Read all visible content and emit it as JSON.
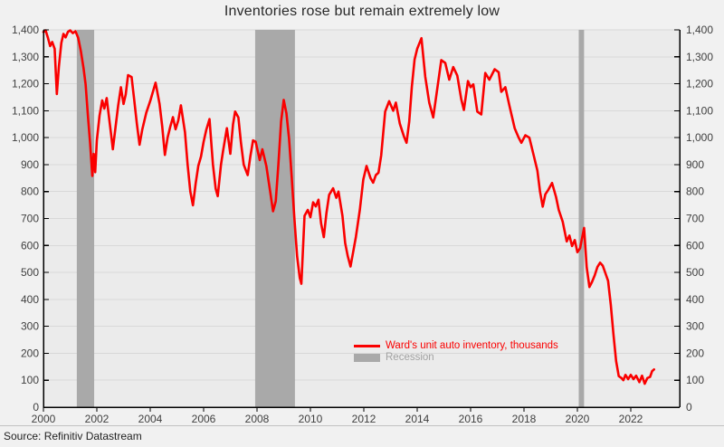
{
  "title": "Inventories rose but remain extremely low",
  "source": "Source: Refinitiv Datastream",
  "legend": {
    "series_label": "Ward's unit auto inventory, thousands",
    "recession_label": "Recession"
  },
  "colors": {
    "line": "#fa0000",
    "recession": "#a9a9a9",
    "plot_bg": "#ebebeb",
    "outer_bg": "#f1f1f1",
    "grid": "#d8d8d8",
    "axis": "#000000",
    "tick_label": "#3f3f3f",
    "title_text": "#282828",
    "legend_series_text": "#fa0000",
    "legend_recession_text": "#a2a2a2"
  },
  "chart_data": {
    "type": "line",
    "title": "Inventories rose but remain extremely low",
    "x_axis": {
      "range": [
        2000,
        2023.83
      ],
      "ticks": [
        2000,
        2002,
        2004,
        2006,
        2008,
        2010,
        2012,
        2014,
        2016,
        2018,
        2020,
        2022
      ]
    },
    "y_axis": {
      "range": [
        0,
        1400
      ],
      "tick_step": 100,
      "ticks": [
        0,
        100,
        200,
        300,
        400,
        500,
        600,
        700,
        800,
        900,
        1000,
        1100,
        1200,
        1300,
        1400
      ],
      "format": "comma",
      "labels_both_sides": true
    },
    "grid": "horizontal-only",
    "legend_position": "inside-bottom-center",
    "recessions": [
      [
        2001.25,
        2001.9
      ],
      [
        2007.93,
        2009.42
      ],
      [
        2020.05,
        2020.25
      ]
    ],
    "series": [
      {
        "name": "Ward's unit auto inventory, thousands",
        "color": "#fa0000",
        "points": [
          [
            2000.0,
            1392
          ],
          [
            2000.08,
            1398
          ],
          [
            2000.17,
            1370
          ],
          [
            2000.25,
            1340
          ],
          [
            2000.33,
            1355
          ],
          [
            2000.42,
            1330
          ],
          [
            2000.5,
            1162
          ],
          [
            2000.58,
            1265
          ],
          [
            2000.67,
            1352
          ],
          [
            2000.75,
            1385
          ],
          [
            2000.83,
            1372
          ],
          [
            2000.92,
            1393
          ],
          [
            2001.0,
            1398
          ],
          [
            2001.1,
            1388
          ],
          [
            2001.2,
            1395
          ],
          [
            2001.3,
            1370
          ],
          [
            2001.4,
            1322
          ],
          [
            2001.5,
            1258
          ],
          [
            2001.58,
            1198
          ],
          [
            2001.67,
            1075
          ],
          [
            2001.75,
            978
          ],
          [
            2001.83,
            858
          ],
          [
            2001.88,
            940
          ],
          [
            2001.94,
            872
          ],
          [
            2002.0,
            990
          ],
          [
            2002.1,
            1082
          ],
          [
            2002.2,
            1138
          ],
          [
            2002.28,
            1108
          ],
          [
            2002.37,
            1147
          ],
          [
            2002.45,
            1080
          ],
          [
            2002.55,
            1000
          ],
          [
            2002.6,
            957
          ],
          [
            2002.7,
            1040
          ],
          [
            2002.8,
            1120
          ],
          [
            2002.9,
            1187
          ],
          [
            2003.0,
            1125
          ],
          [
            2003.08,
            1160
          ],
          [
            2003.17,
            1232
          ],
          [
            2003.3,
            1225
          ],
          [
            2003.4,
            1140
          ],
          [
            2003.5,
            1050
          ],
          [
            2003.6,
            974
          ],
          [
            2003.7,
            1030
          ],
          [
            2003.85,
            1092
          ],
          [
            2004.0,
            1136
          ],
          [
            2004.2,
            1204
          ],
          [
            2004.35,
            1125
          ],
          [
            2004.45,
            1040
          ],
          [
            2004.55,
            936
          ],
          [
            2004.65,
            1000
          ],
          [
            2004.75,
            1040
          ],
          [
            2004.85,
            1076
          ],
          [
            2004.95,
            1031
          ],
          [
            2005.05,
            1064
          ],
          [
            2005.15,
            1120
          ],
          [
            2005.3,
            1020
          ],
          [
            2005.4,
            900
          ],
          [
            2005.5,
            800
          ],
          [
            2005.6,
            749
          ],
          [
            2005.7,
            830
          ],
          [
            2005.8,
            895
          ],
          [
            2005.9,
            930
          ],
          [
            2006.0,
            985
          ],
          [
            2006.1,
            1030
          ],
          [
            2006.22,
            1069
          ],
          [
            2006.35,
            900
          ],
          [
            2006.45,
            811
          ],
          [
            2006.53,
            783
          ],
          [
            2006.65,
            900
          ],
          [
            2006.73,
            951
          ],
          [
            2006.87,
            1035
          ],
          [
            2007.0,
            940
          ],
          [
            2007.1,
            1050
          ],
          [
            2007.18,
            1097
          ],
          [
            2007.3,
            1075
          ],
          [
            2007.4,
            980
          ],
          [
            2007.5,
            900
          ],
          [
            2007.65,
            861
          ],
          [
            2007.75,
            930
          ],
          [
            2007.85,
            990
          ],
          [
            2007.95,
            985
          ],
          [
            2008.1,
            917
          ],
          [
            2008.2,
            957
          ],
          [
            2008.35,
            895
          ],
          [
            2008.5,
            794
          ],
          [
            2008.6,
            727
          ],
          [
            2008.7,
            764
          ],
          [
            2008.8,
            900
          ],
          [
            2008.9,
            1060
          ],
          [
            2009.0,
            1140
          ],
          [
            2009.1,
            1090
          ],
          [
            2009.2,
            996
          ],
          [
            2009.3,
            850
          ],
          [
            2009.4,
            700
          ],
          [
            2009.5,
            560
          ],
          [
            2009.6,
            480
          ],
          [
            2009.66,
            458
          ],
          [
            2009.78,
            710
          ],
          [
            2009.9,
            732
          ],
          [
            2010.0,
            705
          ],
          [
            2010.1,
            760
          ],
          [
            2010.2,
            745
          ],
          [
            2010.3,
            770
          ],
          [
            2010.4,
            682
          ],
          [
            2010.5,
            631
          ],
          [
            2010.6,
            720
          ],
          [
            2010.7,
            788
          ],
          [
            2010.85,
            812
          ],
          [
            2010.97,
            777
          ],
          [
            2011.05,
            800
          ],
          [
            2011.2,
            710
          ],
          [
            2011.3,
            609
          ],
          [
            2011.4,
            560
          ],
          [
            2011.5,
            522
          ],
          [
            2011.6,
            575
          ],
          [
            2011.7,
            631
          ],
          [
            2011.85,
            732
          ],
          [
            2011.98,
            844
          ],
          [
            2012.1,
            895
          ],
          [
            2012.25,
            850
          ],
          [
            2012.35,
            833
          ],
          [
            2012.45,
            861
          ],
          [
            2012.55,
            870
          ],
          [
            2012.65,
            934
          ],
          [
            2012.8,
            1097
          ],
          [
            2012.95,
            1135
          ],
          [
            2013.1,
            1100
          ],
          [
            2013.2,
            1130
          ],
          [
            2013.35,
            1052
          ],
          [
            2013.5,
            1005
          ],
          [
            2013.6,
            981
          ],
          [
            2013.7,
            1060
          ],
          [
            2013.8,
            1190
          ],
          [
            2013.9,
            1290
          ],
          [
            2014.0,
            1330
          ],
          [
            2014.16,
            1369
          ],
          [
            2014.3,
            1226
          ],
          [
            2014.45,
            1130
          ],
          [
            2014.6,
            1075
          ],
          [
            2014.75,
            1180
          ],
          [
            2014.9,
            1288
          ],
          [
            2015.05,
            1277
          ],
          [
            2015.2,
            1215
          ],
          [
            2015.35,
            1262
          ],
          [
            2015.5,
            1230
          ],
          [
            2015.65,
            1142
          ],
          [
            2015.75,
            1103
          ],
          [
            2015.9,
            1210
          ],
          [
            2016.0,
            1187
          ],
          [
            2016.1,
            1198
          ],
          [
            2016.25,
            1097
          ],
          [
            2016.4,
            1086
          ],
          [
            2016.55,
            1240
          ],
          [
            2016.7,
            1215
          ],
          [
            2016.9,
            1254
          ],
          [
            2017.05,
            1243
          ],
          [
            2017.15,
            1170
          ],
          [
            2017.3,
            1187
          ],
          [
            2017.45,
            1120
          ],
          [
            2017.65,
            1035
          ],
          [
            2017.8,
            1000
          ],
          [
            2017.9,
            981
          ],
          [
            2018.05,
            1009
          ],
          [
            2018.2,
            1000
          ],
          [
            2018.35,
            940
          ],
          [
            2018.5,
            878
          ],
          [
            2018.6,
            800
          ],
          [
            2018.7,
            744
          ],
          [
            2018.8,
            790
          ],
          [
            2018.9,
            805
          ],
          [
            2019.05,
            832
          ],
          [
            2019.2,
            780
          ],
          [
            2019.3,
            732
          ],
          [
            2019.45,
            688
          ],
          [
            2019.6,
            615
          ],
          [
            2019.7,
            637
          ],
          [
            2019.8,
            598
          ],
          [
            2019.9,
            620
          ],
          [
            2020.0,
            575
          ],
          [
            2020.1,
            590
          ],
          [
            2020.25,
            665
          ],
          [
            2020.35,
            519
          ],
          [
            2020.45,
            446
          ],
          [
            2020.55,
            465
          ],
          [
            2020.65,
            490
          ],
          [
            2020.75,
            520
          ],
          [
            2020.85,
            536
          ],
          [
            2020.95,
            525
          ],
          [
            2021.05,
            497
          ],
          [
            2021.15,
            469
          ],
          [
            2021.25,
            380
          ],
          [
            2021.35,
            272
          ],
          [
            2021.45,
            171
          ],
          [
            2021.55,
            115
          ],
          [
            2021.65,
            108
          ],
          [
            2021.72,
            100
          ],
          [
            2021.8,
            120
          ],
          [
            2021.9,
            104
          ],
          [
            2022.0,
            120
          ],
          [
            2022.1,
            104
          ],
          [
            2022.2,
            117
          ],
          [
            2022.32,
            93
          ],
          [
            2022.42,
            117
          ],
          [
            2022.52,
            87
          ],
          [
            2022.62,
            108
          ],
          [
            2022.72,
            112
          ],
          [
            2022.8,
            134
          ],
          [
            2022.87,
            140
          ]
        ]
      }
    ]
  }
}
